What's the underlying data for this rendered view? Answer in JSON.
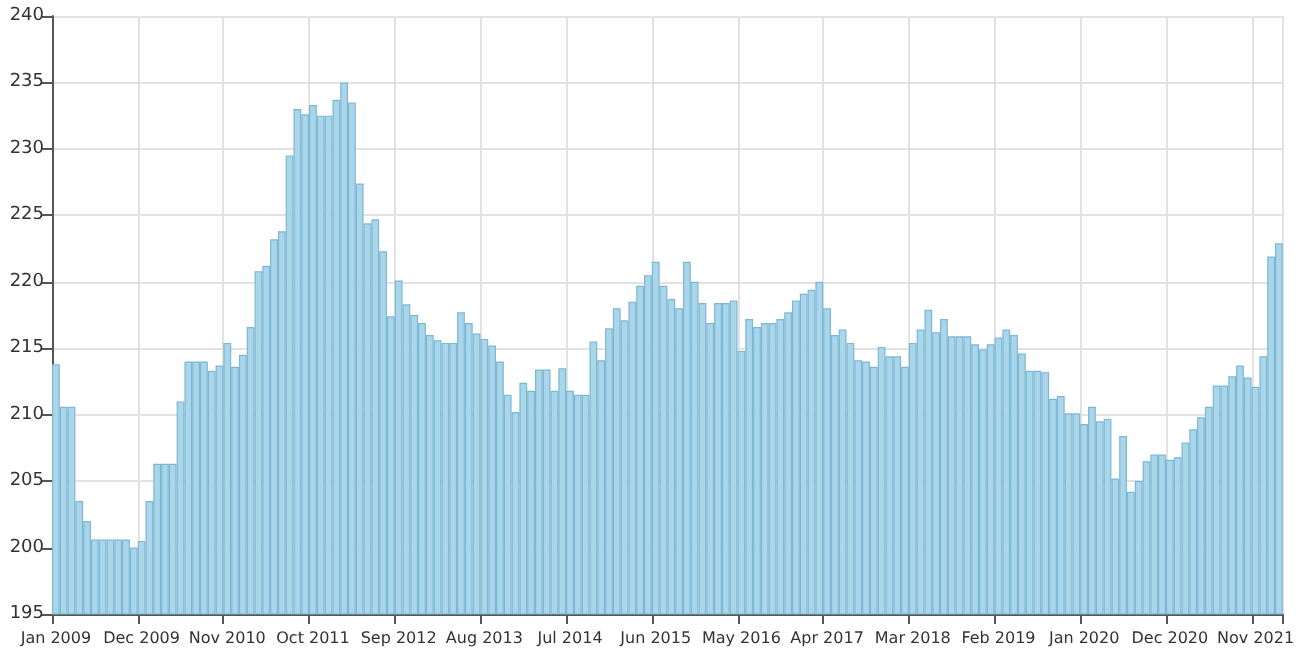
{
  "chart_data": {
    "type": "bar",
    "categories": [
      "Jan 2009",
      null,
      null,
      null,
      null,
      null,
      null,
      null,
      null,
      null,
      null,
      "Dec 2009",
      null,
      null,
      null,
      null,
      null,
      null,
      null,
      null,
      null,
      null,
      "Nov 2010",
      null,
      null,
      null,
      null,
      null,
      null,
      null,
      null,
      null,
      null,
      "Oct 2011",
      null,
      null,
      null,
      null,
      null,
      null,
      null,
      null,
      null,
      null,
      "Sep 2012",
      null,
      null,
      null,
      null,
      null,
      null,
      null,
      null,
      null,
      null,
      "Aug 2013",
      null,
      null,
      null,
      null,
      null,
      null,
      null,
      null,
      null,
      null,
      "Jul 2014",
      null,
      null,
      null,
      null,
      null,
      null,
      null,
      null,
      null,
      null,
      "Jun 2015",
      null,
      null,
      null,
      null,
      null,
      null,
      null,
      null,
      null,
      null,
      "May 2016",
      null,
      null,
      null,
      null,
      null,
      null,
      null,
      null,
      null,
      null,
      "Apr 2017",
      null,
      null,
      null,
      null,
      null,
      null,
      null,
      null,
      null,
      null,
      "Mar 2018",
      null,
      null,
      null,
      null,
      null,
      null,
      null,
      null,
      null,
      null,
      "Feb 2019",
      null,
      null,
      null,
      null,
      null,
      null,
      null,
      null,
      null,
      null,
      "Jan 2020",
      null,
      null,
      null,
      null,
      null,
      null,
      null,
      null,
      null,
      null,
      "Dec 2020",
      null,
      null,
      null,
      null,
      null,
      null,
      null,
      null,
      null,
      null,
      "Nov 2021",
      null,
      null,
      null
    ],
    "values": [
      213.8,
      210.6,
      210.6,
      203.5,
      202.0,
      200.6,
      200.6,
      200.6,
      200.6,
      200.6,
      200.0,
      200.5,
      203.5,
      206.3,
      206.3,
      206.3,
      211.0,
      214.0,
      214.0,
      214.0,
      213.3,
      213.7,
      215.4,
      213.6,
      214.5,
      216.6,
      220.8,
      221.2,
      223.2,
      223.8,
      229.5,
      233.0,
      232.6,
      233.3,
      232.5,
      232.5,
      233.7,
      235.0,
      233.5,
      227.4,
      224.4,
      224.7,
      222.3,
      217.4,
      220.1,
      218.3,
      217.5,
      216.9,
      216.0,
      215.6,
      215.4,
      215.4,
      217.7,
      216.9,
      216.1,
      215.7,
      215.2,
      214.0,
      211.5,
      210.2,
      212.4,
      211.8,
      213.4,
      213.4,
      211.8,
      213.5,
      211.8,
      211.5,
      211.5,
      215.5,
      214.1,
      216.5,
      218.0,
      217.1,
      218.5,
      219.7,
      220.5,
      221.5,
      219.7,
      218.7,
      218.0,
      221.5,
      220.0,
      218.4,
      216.9,
      218.4,
      218.4,
      218.6,
      214.8,
      217.2,
      216.6,
      216.9,
      216.9,
      217.2,
      217.7,
      218.6,
      219.1,
      219.4,
      220.0,
      218.0,
      216.0,
      216.4,
      215.4,
      214.1,
      214.0,
      213.6,
      215.1,
      214.4,
      214.4,
      213.6,
      215.4,
      216.4,
      217.9,
      216.2,
      217.2,
      215.9,
      215.9,
      215.9,
      215.3,
      214.9,
      215.3,
      215.8,
      216.4,
      216.0,
      214.6,
      213.3,
      213.3,
      213.2,
      211.2,
      211.4,
      210.1,
      210.1,
      209.3,
      210.6,
      209.5,
      209.7,
      205.2,
      208.4,
      204.2,
      205.0,
      206.5,
      207.0,
      207.0,
      206.6,
      206.8,
      207.9,
      208.9,
      209.8,
      210.6,
      212.2,
      212.2,
      212.9,
      213.7,
      212.8,
      212.1,
      214.4,
      221.9,
      222.9
    ],
    "color": "#a9d6ea",
    "ylim": [
      195,
      240
    ],
    "yticks": [
      195,
      200,
      205,
      210,
      215,
      220,
      225,
      230,
      235,
      240
    ],
    "grid": true
  }
}
